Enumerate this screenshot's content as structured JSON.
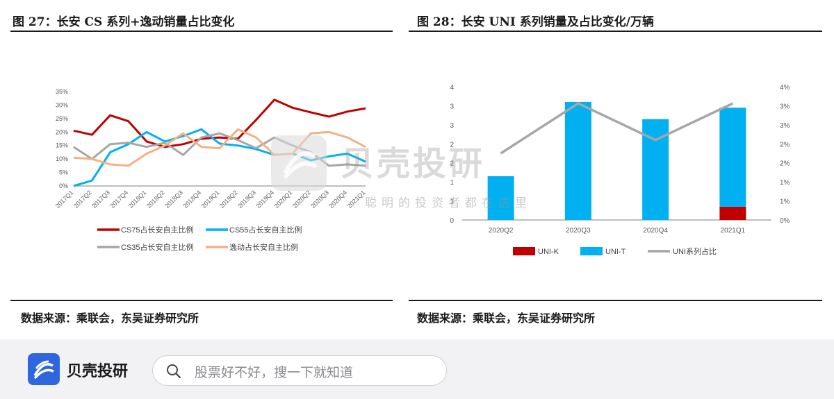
{
  "left_panel": {
    "title": "图 27：长安 CS 系列+逸动销量占比变化",
    "source": "数据来源：乘联会，东吴证券研究所"
  },
  "right_panel": {
    "title": "图 28：长安 UNI 系列销量及占比变化/万辆",
    "source": "数据来源：乘联会，东吴证券研究所"
  },
  "watermark": {
    "name": "贝壳投研",
    "slogan": "聪明的投资者都在这里"
  },
  "bottom_bar": {
    "brand": "贝壳投研",
    "search_placeholder": "股票好不好，搜一下就知道"
  },
  "colors": {
    "red": "#c00000",
    "blue": "#00b0f0",
    "gray": "#a6a6a6",
    "orange": "#f4b183",
    "brand_blue": "#2e66e0"
  },
  "chart_data": [
    {
      "type": "line",
      "categories": [
        "2017Q1",
        "2017Q2",
        "2017Q3",
        "2017Q4",
        "2018Q1",
        "2018Q2",
        "2018Q3",
        "2018Q4",
        "2019Q1",
        "2019Q2",
        "2019Q3",
        "2019Q4",
        "2020Q1",
        "2020Q2",
        "2020Q3",
        "2020Q4",
        "2021Q1"
      ],
      "y_ticks": [
        "0%",
        "5%",
        "10%",
        "15%",
        "20%",
        "25%",
        "30%",
        "35%"
      ],
      "ylim": [
        0,
        35
      ],
      "grid": false,
      "legend_position": "bottom",
      "series": [
        {
          "name": "CS75占长安自主比例",
          "color": "#c00000",
          "values": [
            20.5,
            19,
            26.2,
            24,
            16.5,
            14.5,
            15.5,
            17.5,
            18,
            17.5,
            24.5,
            32,
            29,
            27.3,
            25.7,
            27.6,
            28.8
          ]
        },
        {
          "name": "CS55占长安自主比例",
          "color": "#00b0f0",
          "values": [
            0,
            2,
            12.5,
            15.5,
            20,
            16.5,
            18.5,
            21,
            15.7,
            15,
            13.7,
            11.5,
            12,
            9.5,
            11,
            12,
            9
          ]
        },
        {
          "name": "CS35占长安自主比例",
          "color": "#a6a6a6",
          "values": [
            14.5,
            10,
            15.5,
            16,
            14.5,
            16,
            11.5,
            18,
            19.5,
            17,
            14,
            18,
            15,
            12.5,
            7.5,
            8,
            7.5
          ]
        },
        {
          "name": "逸动占长安自主比例",
          "color": "#f4b183",
          "values": [
            10.5,
            10,
            8,
            7.5,
            12,
            15,
            19.5,
            14.5,
            14,
            21,
            18,
            11.5,
            12,
            19.5,
            20,
            18,
            14.5
          ]
        }
      ]
    },
    {
      "type": "bar",
      "categories": [
        "2020Q2",
        "2020Q3",
        "2020Q4",
        "2021Q1"
      ],
      "y_ticks_left": [
        "0",
        "1",
        "1",
        "2",
        "2",
        "3",
        "3",
        "4"
      ],
      "y_ticks_right": [
        "0%",
        "1%",
        "1%",
        "2%",
        "2%",
        "3%",
        "3%",
        "4%"
      ],
      "ylim_left": [
        0,
        3.5
      ],
      "ylim_right": [
        0,
        4
      ],
      "grid": false,
      "legend_position": "bottom",
      "series": [
        {
          "name": "UNI-K",
          "color": "#c00000",
          "kind": "stacked-bar",
          "values": [
            0,
            0,
            0,
            0.35
          ]
        },
        {
          "name": "UNI-T",
          "color": "#00b0f0",
          "kind": "stacked-bar",
          "values": [
            1.15,
            3.1,
            2.65,
            2.6
          ]
        },
        {
          "name": "UNI系列占比",
          "color": "#a6a6a6",
          "kind": "line-right-axis",
          "values": [
            2.0,
            3.5,
            2.4,
            3.5
          ]
        }
      ]
    }
  ]
}
